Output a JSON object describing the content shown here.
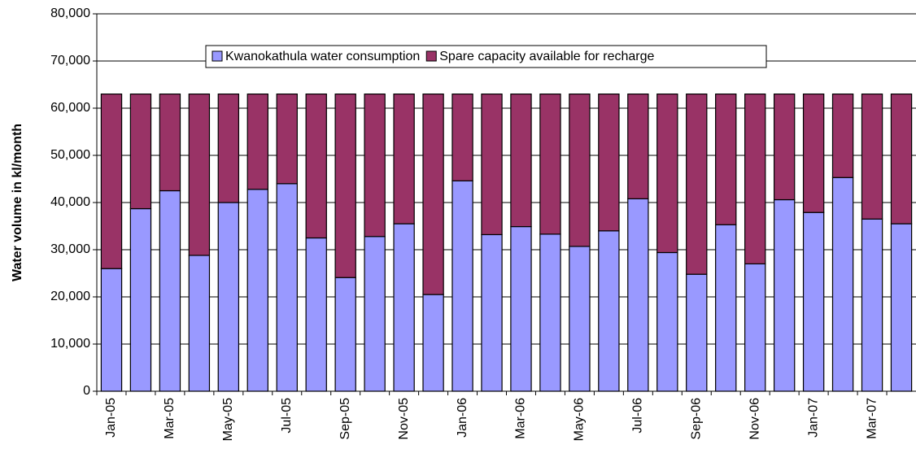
{
  "chart_data": {
    "type": "stacked-bar",
    "y_label": "Water volume in kl/month",
    "categories": [
      "Jan-05",
      null,
      "Mar-05",
      null,
      "May-05",
      null,
      "Jul-05",
      null,
      "Sep-05",
      null,
      "Nov-05",
      null,
      "Jan-06",
      null,
      "Mar-06",
      null,
      "May-06",
      null,
      "Jul-06",
      null,
      "Sep-06",
      null,
      "Nov-06",
      null,
      "Jan-07",
      null,
      "Mar-07",
      null
    ],
    "series": [
      {
        "name": "Kwanokathula water consumption",
        "color": "#9999ff",
        "values": [
          26000,
          38700,
          42500,
          28800,
          40000,
          42800,
          44000,
          32500,
          24100,
          32800,
          35500,
          20500,
          44600,
          33200,
          34900,
          33300,
          30700,
          34000,
          40800,
          29400,
          24800,
          35300,
          27000,
          40600,
          37900,
          45300,
          36500,
          35500
        ]
      },
      {
        "name": "Spare capacity available for recharge",
        "color": "#993366",
        "values": [
          37000,
          24300,
          20500,
          34200,
          23000,
          20200,
          19000,
          30500,
          38900,
          30200,
          27500,
          42500,
          18400,
          29800,
          28100,
          29700,
          32300,
          29000,
          22200,
          33600,
          38200,
          27700,
          36000,
          22400,
          25100,
          17700,
          26500,
          27500
        ]
      }
    ],
    "ylim": [
      0,
      80000
    ],
    "yticks": [
      0,
      {
        "value": 10000,
        "label": "10,000"
      },
      {
        "value": 20000,
        "label": "20,000"
      },
      {
        "value": 30000,
        "label": "30,000"
      },
      {
        "value": 40000,
        "label": "40,000"
      },
      {
        "value": 50000,
        "label": "50,000"
      },
      {
        "value": 60000,
        "label": "60,000"
      },
      {
        "value": 70000,
        "label": "70,000"
      },
      {
        "value": 80000,
        "label": "80,000"
      }
    ],
    "grid": true,
    "legend": "top"
  }
}
